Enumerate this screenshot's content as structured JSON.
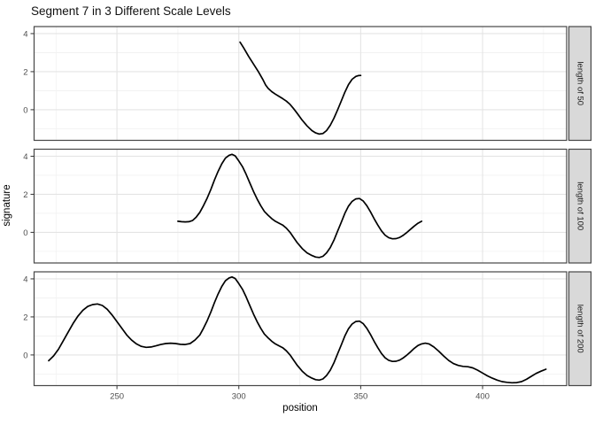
{
  "title": "Segment 7 in 3 Different Scale Levels",
  "x_axis": {
    "title": "position",
    "tick_labels": [
      "250",
      "300",
      "350",
      "400"
    ]
  },
  "y_axis": {
    "title": "signature",
    "tick_labels": [
      "0",
      "2",
      "4"
    ]
  },
  "colors": {
    "line": "#000000",
    "panel_background": "#ffffff",
    "panel_border": "#474747",
    "grid_major": "#e4e4e4",
    "grid_minor": "#f1f1f1",
    "strip_background": "#d9d9d9",
    "tick_label": "#4d4d4d",
    "tick_mark": "#333333",
    "strip_text": "#1a1a1a"
  },
  "chart_data": {
    "type": "line",
    "title": "Segment 7 in 3 Different Scale Levels",
    "xlabel": "position",
    "ylabel": "signature",
    "xlim": [
      216,
      434.5
    ],
    "ylim": [
      -1.61,
      4.37
    ],
    "x_major_ticks": [
      250,
      300,
      350,
      400
    ],
    "x_minor_ticks": [
      225,
      275,
      325,
      375,
      425
    ],
    "y_major_ticks": [
      0,
      2,
      4
    ],
    "y_minor_ticks": [
      -1,
      1,
      3
    ],
    "grid": true,
    "legend": "none",
    "facets": [
      {
        "label": "length of 50",
        "points": [
          [
            300.5,
            3.55
          ],
          [
            302,
            3.25
          ],
          [
            304,
            2.8
          ],
          [
            306,
            2.4
          ],
          [
            308,
            2.0
          ],
          [
            310,
            1.55
          ],
          [
            311,
            1.3
          ],
          [
            312,
            1.12
          ],
          [
            313.5,
            0.95
          ],
          [
            315,
            0.82
          ],
          [
            316.5,
            0.7
          ],
          [
            318,
            0.58
          ],
          [
            319.5,
            0.45
          ],
          [
            321,
            0.28
          ],
          [
            322.5,
            0.05
          ],
          [
            324,
            -0.2
          ],
          [
            326,
            -0.55
          ],
          [
            328,
            -0.85
          ],
          [
            330,
            -1.1
          ],
          [
            331.5,
            -1.22
          ],
          [
            333,
            -1.28
          ],
          [
            334.5,
            -1.25
          ],
          [
            336,
            -1.1
          ],
          [
            337.5,
            -0.82
          ],
          [
            339,
            -0.45
          ],
          [
            340.5,
            -0.02
          ],
          [
            342,
            0.45
          ],
          [
            343.5,
            0.92
          ],
          [
            345,
            1.32
          ],
          [
            346.5,
            1.6
          ],
          [
            348,
            1.75
          ],
          [
            349,
            1.79
          ],
          [
            350,
            1.8
          ]
        ]
      },
      {
        "label": "length of 100",
        "points": [
          [
            275,
            0.58
          ],
          [
            276.5,
            0.56
          ],
          [
            278,
            0.55
          ],
          [
            279.5,
            0.56
          ],
          [
            281,
            0.62
          ],
          [
            282.5,
            0.8
          ],
          [
            284,
            1.05
          ],
          [
            285.5,
            1.4
          ],
          [
            287,
            1.8
          ],
          [
            288.5,
            2.25
          ],
          [
            290,
            2.75
          ],
          [
            291.5,
            3.2
          ],
          [
            293,
            3.6
          ],
          [
            294.5,
            3.9
          ],
          [
            296,
            4.05
          ],
          [
            297.2,
            4.1
          ],
          [
            298.5,
            4.02
          ],
          [
            300,
            3.75
          ],
          [
            301.5,
            3.45
          ],
          [
            303,
            3.05
          ],
          [
            304.5,
            2.6
          ],
          [
            306,
            2.15
          ],
          [
            307.5,
            1.75
          ],
          [
            309,
            1.4
          ],
          [
            310.5,
            1.1
          ],
          [
            312,
            0.9
          ],
          [
            313.5,
            0.72
          ],
          [
            315,
            0.58
          ],
          [
            316.5,
            0.48
          ],
          [
            318,
            0.38
          ],
          [
            319.5,
            0.22
          ],
          [
            321,
            0.0
          ],
          [
            322.5,
            -0.28
          ],
          [
            324,
            -0.55
          ],
          [
            326,
            -0.85
          ],
          [
            328,
            -1.08
          ],
          [
            330,
            -1.22
          ],
          [
            331.5,
            -1.3
          ],
          [
            333,
            -1.32
          ],
          [
            334.5,
            -1.26
          ],
          [
            336,
            -1.08
          ],
          [
            337.5,
            -0.8
          ],
          [
            339,
            -0.42
          ],
          [
            340.5,
            0.05
          ],
          [
            342,
            0.52
          ],
          [
            343.5,
            1.0
          ],
          [
            345,
            1.38
          ],
          [
            346.5,
            1.63
          ],
          [
            348,
            1.76
          ],
          [
            349.5,
            1.78
          ],
          [
            351,
            1.65
          ],
          [
            352.5,
            1.4
          ],
          [
            354,
            1.08
          ],
          [
            355.5,
            0.72
          ],
          [
            357,
            0.38
          ],
          [
            358.5,
            0.08
          ],
          [
            360,
            -0.15
          ],
          [
            361.5,
            -0.28
          ],
          [
            363,
            -0.34
          ],
          [
            364.5,
            -0.33
          ],
          [
            366,
            -0.27
          ],
          [
            367.5,
            -0.15
          ],
          [
            369,
            0.0
          ],
          [
            370.5,
            0.17
          ],
          [
            372,
            0.33
          ],
          [
            373.5,
            0.48
          ],
          [
            375,
            0.58
          ]
        ]
      },
      {
        "label": "length of 200",
        "points": [
          [
            222,
            -0.3
          ],
          [
            224,
            -0.05
          ],
          [
            226,
            0.3
          ],
          [
            228,
            0.75
          ],
          [
            230,
            1.2
          ],
          [
            232,
            1.65
          ],
          [
            234,
            2.05
          ],
          [
            236,
            2.35
          ],
          [
            238,
            2.55
          ],
          [
            240,
            2.65
          ],
          [
            242,
            2.68
          ],
          [
            244,
            2.6
          ],
          [
            246,
            2.4
          ],
          [
            248,
            2.1
          ],
          [
            250,
            1.75
          ],
          [
            252,
            1.4
          ],
          [
            254,
            1.05
          ],
          [
            256,
            0.78
          ],
          [
            258,
            0.58
          ],
          [
            260,
            0.45
          ],
          [
            262,
            0.4
          ],
          [
            264,
            0.42
          ],
          [
            266,
            0.48
          ],
          [
            268,
            0.55
          ],
          [
            270,
            0.6
          ],
          [
            272,
            0.62
          ],
          [
            274,
            0.6
          ],
          [
            276,
            0.56
          ],
          [
            278,
            0.55
          ],
          [
            280,
            0.6
          ],
          [
            282,
            0.78
          ],
          [
            284,
            1.05
          ],
          [
            285.5,
            1.4
          ],
          [
            287,
            1.8
          ],
          [
            288.5,
            2.25
          ],
          [
            290,
            2.75
          ],
          [
            291.5,
            3.2
          ],
          [
            293,
            3.6
          ],
          [
            294.5,
            3.9
          ],
          [
            296,
            4.05
          ],
          [
            297.2,
            4.1
          ],
          [
            298.5,
            4.02
          ],
          [
            300,
            3.75
          ],
          [
            301.5,
            3.45
          ],
          [
            303,
            3.05
          ],
          [
            304.5,
            2.6
          ],
          [
            306,
            2.15
          ],
          [
            307.5,
            1.75
          ],
          [
            309,
            1.4
          ],
          [
            310.5,
            1.1
          ],
          [
            312,
            0.9
          ],
          [
            313.5,
            0.72
          ],
          [
            315,
            0.58
          ],
          [
            316.5,
            0.48
          ],
          [
            318,
            0.38
          ],
          [
            319.5,
            0.22
          ],
          [
            321,
            0.0
          ],
          [
            322.5,
            -0.28
          ],
          [
            324,
            -0.55
          ],
          [
            326,
            -0.85
          ],
          [
            328,
            -1.08
          ],
          [
            330,
            -1.22
          ],
          [
            331.5,
            -1.3
          ],
          [
            333,
            -1.32
          ],
          [
            334.5,
            -1.26
          ],
          [
            336,
            -1.08
          ],
          [
            337.5,
            -0.8
          ],
          [
            339,
            -0.42
          ],
          [
            340.5,
            0.05
          ],
          [
            342,
            0.52
          ],
          [
            343.5,
            1.0
          ],
          [
            345,
            1.38
          ],
          [
            346.5,
            1.63
          ],
          [
            348,
            1.76
          ],
          [
            349.5,
            1.78
          ],
          [
            351,
            1.65
          ],
          [
            352.5,
            1.4
          ],
          [
            354,
            1.08
          ],
          [
            355.5,
            0.72
          ],
          [
            357,
            0.38
          ],
          [
            358.5,
            0.08
          ],
          [
            360,
            -0.15
          ],
          [
            361.5,
            -0.28
          ],
          [
            363,
            -0.34
          ],
          [
            364.5,
            -0.33
          ],
          [
            366,
            -0.27
          ],
          [
            367.5,
            -0.15
          ],
          [
            369,
            0.0
          ],
          [
            370.5,
            0.17
          ],
          [
            372,
            0.35
          ],
          [
            373.5,
            0.5
          ],
          [
            375,
            0.58
          ],
          [
            376.5,
            0.62
          ],
          [
            378,
            0.58
          ],
          [
            380,
            0.42
          ],
          [
            382,
            0.2
          ],
          [
            384,
            -0.05
          ],
          [
            386,
            -0.28
          ],
          [
            388,
            -0.45
          ],
          [
            390,
            -0.55
          ],
          [
            392,
            -0.6
          ],
          [
            394,
            -0.62
          ],
          [
            396,
            -0.68
          ],
          [
            398,
            -0.8
          ],
          [
            400,
            -0.95
          ],
          [
            402,
            -1.1
          ],
          [
            404,
            -1.22
          ],
          [
            406,
            -1.32
          ],
          [
            408,
            -1.4
          ],
          [
            410,
            -1.44
          ],
          [
            412,
            -1.46
          ],
          [
            414,
            -1.45
          ],
          [
            416,
            -1.4
          ],
          [
            418,
            -1.28
          ],
          [
            420,
            -1.12
          ],
          [
            422,
            -0.97
          ],
          [
            424,
            -0.85
          ],
          [
            426,
            -0.75
          ]
        ]
      }
    ]
  }
}
